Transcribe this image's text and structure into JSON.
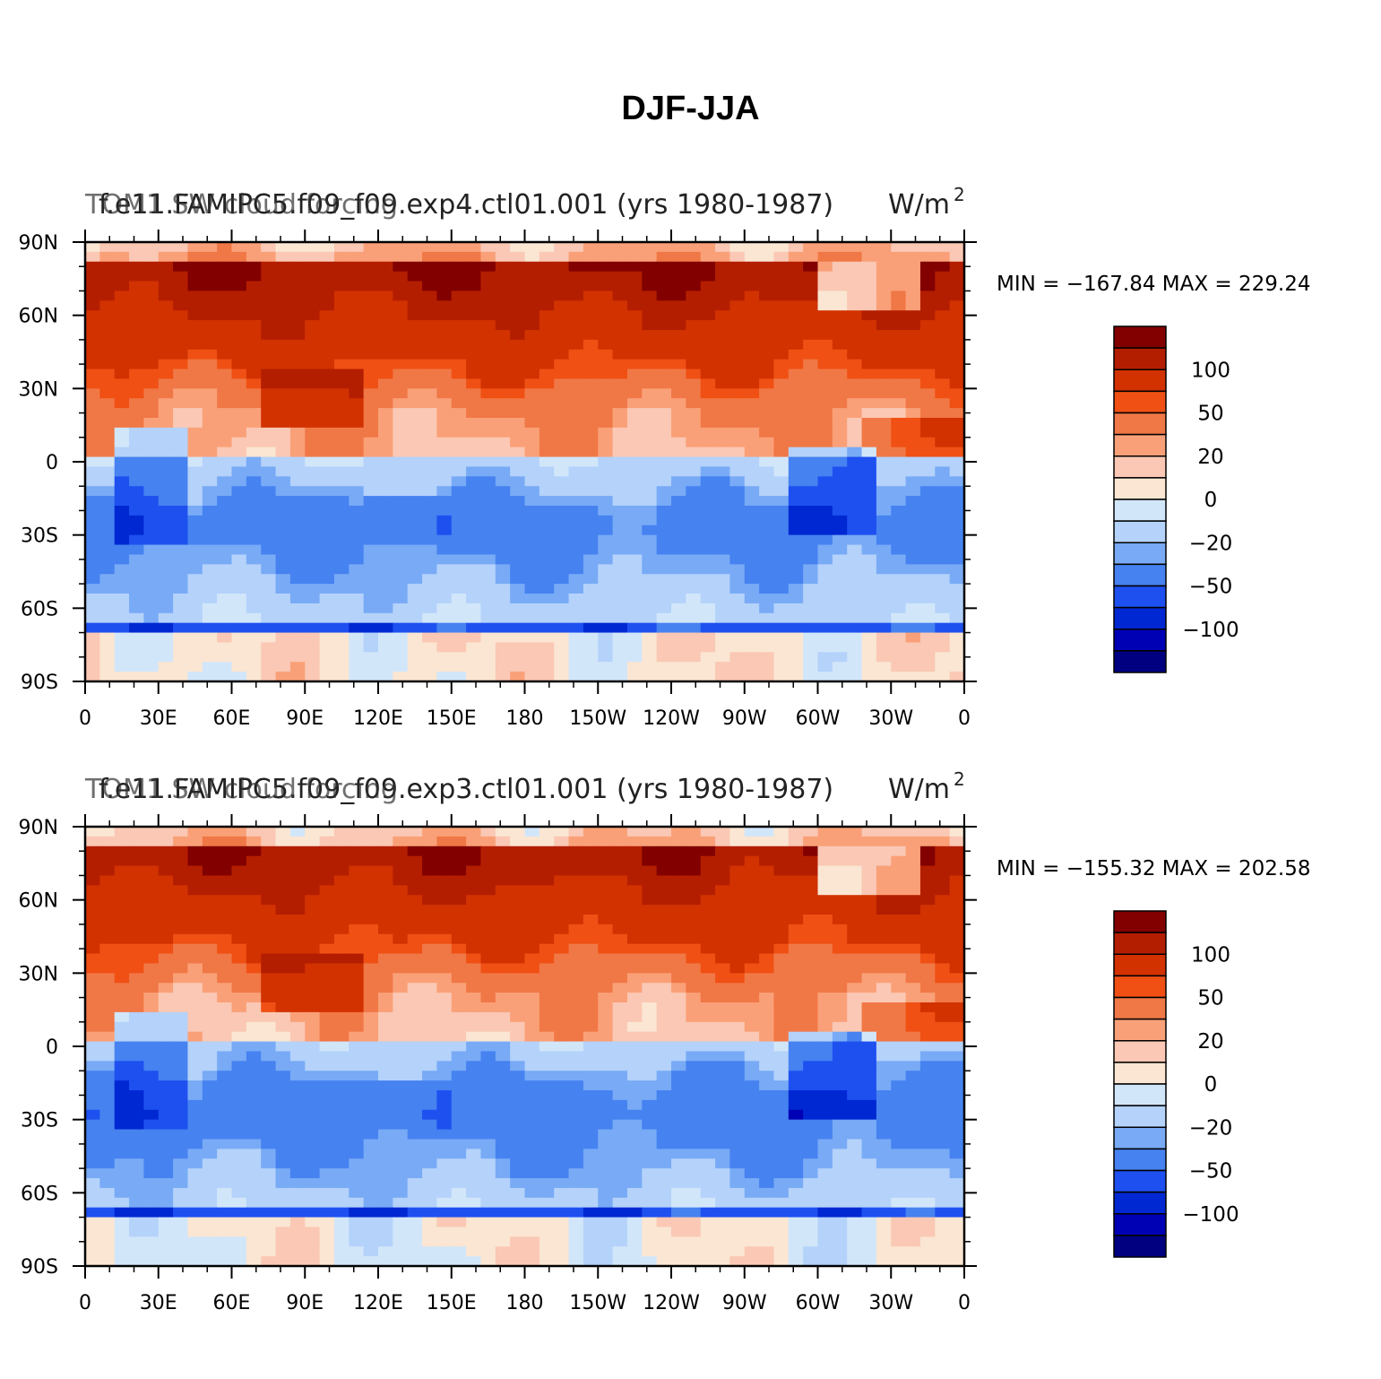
{
  "title": "DJF-JJA",
  "colors": {
    "levels": [
      "#000080",
      "#0000b4",
      "#0028d2",
      "#1e50f0",
      "#4682f0",
      "#78aaf6",
      "#b4d2fa",
      "#d2e6fa",
      "#fae6d2",
      "#fac8b4",
      "#faa078",
      "#f07846",
      "#f05014",
      "#d23200",
      "#b41e00",
      "#820000"
    ]
  },
  "chart_data": [
    {
      "type": "heatmap",
      "left_title": "f.e11.FAMIPC5.f09_f09.exp4.ctl01.001 (yrs 1980-1987)",
      "left_title_overlay": "TOM1 SW cloud forcing",
      "units": "W/m",
      "units_superscript": "2",
      "stats": "MIN = −167.84  MAX = 229.24",
      "min": -167.84,
      "max": 229.24,
      "colorbar_levels": [
        -150,
        -120,
        -100,
        -80,
        -50,
        -40,
        -20,
        -10,
        0,
        10,
        20,
        40,
        50,
        80,
        100,
        120,
        150
      ],
      "colorbar_labels": [
        "100",
        "50",
        "20",
        "0",
        "−20",
        "−50",
        "−100"
      ],
      "x_tick_labels": [
        "0",
        "30E",
        "60E",
        "90E",
        "120E",
        "150E",
        "180",
        "150W",
        "120W",
        "90W",
        "60W",
        "30W",
        "0"
      ],
      "y_tick_labels": [
        "90N",
        "60N",
        "30N",
        "0",
        "30S",
        "60S",
        "90S"
      ],
      "xlim": [
        0,
        360
      ],
      "ylim": [
        -90,
        90
      ]
    },
    {
      "type": "heatmap",
      "left_title": "f.e11.FAMIPC5.f09_f09.exp3.ctl01.001 (yrs 1980-1987)",
      "left_title_overlay": "TOM1 SW cloud forcing",
      "units": "W/m",
      "units_superscript": "2",
      "stats": "MIN = −155.32  MAX = 202.58",
      "min": -155.32,
      "max": 202.58,
      "colorbar_levels": [
        -150,
        -120,
        -100,
        -80,
        -50,
        -40,
        -20,
        -10,
        0,
        10,
        20,
        40,
        50,
        80,
        100,
        120,
        150
      ],
      "colorbar_labels": [
        "100",
        "50",
        "20",
        "0",
        "−20",
        "−50",
        "−100"
      ],
      "x_tick_labels": [
        "0",
        "30E",
        "60E",
        "90E",
        "120E",
        "150E",
        "180",
        "150W",
        "120W",
        "90W",
        "60W",
        "30W",
        "0"
      ],
      "y_tick_labels": [
        "90N",
        "60N",
        "30N",
        "0",
        "30S",
        "60S",
        "90S"
      ],
      "xlim": [
        0,
        360
      ],
      "ylim": [
        -90,
        90
      ]
    }
  ]
}
